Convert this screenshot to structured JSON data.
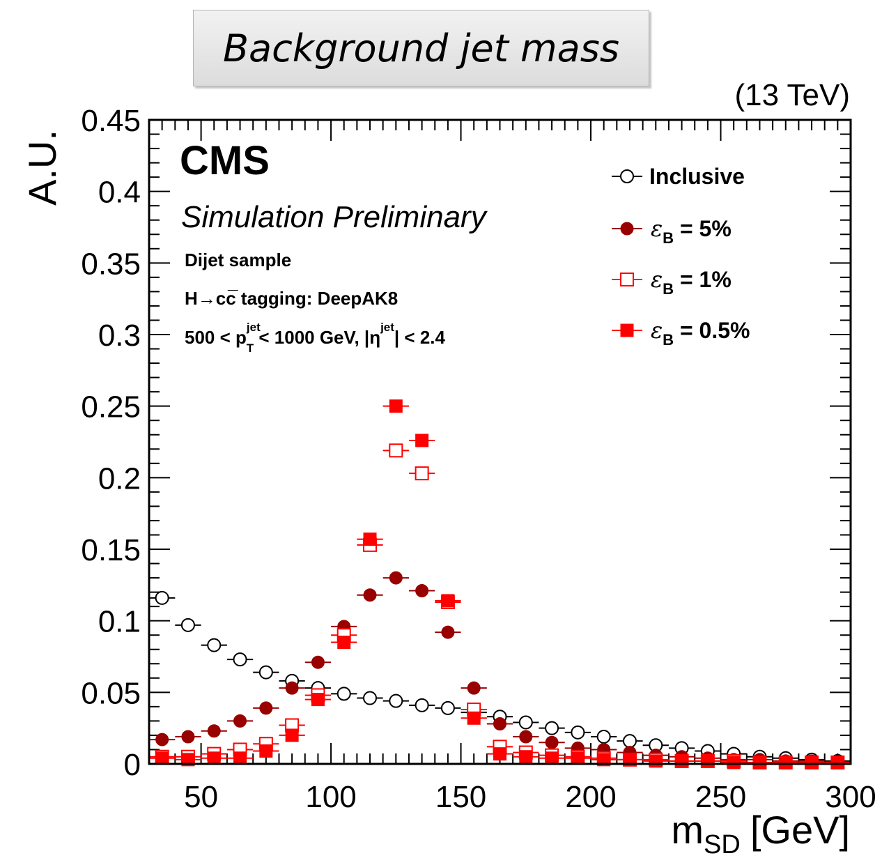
{
  "header": {
    "title": "Background jet mass",
    "energy": "(13 TeV)"
  },
  "chart_data": {
    "type": "scatter",
    "xlabel_main": "m",
    "xlabel_sub": "SD",
    "xlabel_unit": "[GeV]",
    "ylabel": "A.U.",
    "xlim": [
      30,
      300
    ],
    "ylim": [
      0,
      0.45
    ],
    "x_tick_labels": [
      "50",
      "100",
      "150",
      "200",
      "250",
      "300"
    ],
    "y_tick_labels": [
      "0",
      "0.05",
      "0.1",
      "0.15",
      "0.2",
      "0.25",
      "0.3",
      "0.35",
      "0.4",
      "0.45"
    ],
    "cms_label": "CMS",
    "sim_label": "Simulation Preliminary",
    "info": {
      "sample": "Dijet sample",
      "tagging": "H→cc̅ tagging: DeepAK8",
      "kin_prefix": "500 < p",
      "kin_pt_sup": "jet",
      "kin_pt_sub": "T",
      "kin_mid": " < 1000 GeV, |η",
      "kin_eta_sup": "jet",
      "kin_suffix": "| < 2.4"
    },
    "legend_position": "top-right",
    "x": [
      35,
      45,
      55,
      65,
      75,
      85,
      95,
      105,
      115,
      125,
      135,
      145,
      155,
      165,
      175,
      185,
      195,
      205,
      215,
      225,
      235,
      245,
      255,
      265,
      275,
      285,
      295
    ],
    "series": [
      {
        "name": "Inclusive",
        "marker": "open-circle",
        "color": "#000000",
        "values": [
          0.116,
          0.097,
          0.083,
          0.073,
          0.064,
          0.058,
          0.053,
          0.049,
          0.046,
          0.044,
          0.041,
          0.039,
          0.036,
          0.033,
          0.029,
          0.025,
          0.022,
          0.019,
          0.016,
          0.013,
          0.011,
          0.009,
          0.007,
          0.005,
          0.004,
          0.003,
          0.002
        ]
      },
      {
        "name_prefix": "ε",
        "name_sub": "B",
        "name_suffix": " = 5%",
        "marker": "filled-circle",
        "color": "#990000",
        "values": [
          0.017,
          0.019,
          0.023,
          0.03,
          0.039,
          0.053,
          0.071,
          0.096,
          0.118,
          0.13,
          0.121,
          0.092,
          0.053,
          0.028,
          0.019,
          0.015,
          0.011,
          0.01,
          0.008,
          0.006,
          0.005,
          0.004,
          0.003,
          0.003,
          0.002,
          0.002,
          0.001
        ]
      },
      {
        "name_prefix": "ε",
        "name_sub": "B",
        "name_suffix": " = 1%",
        "marker": "open-square",
        "color": "#ff0000",
        "values": [
          0.005,
          0.005,
          0.007,
          0.01,
          0.014,
          0.027,
          0.048,
          0.09,
          0.153,
          0.219,
          0.203,
          0.113,
          0.038,
          0.012,
          0.008,
          0.006,
          0.005,
          0.004,
          0.003,
          0.003,
          0.002,
          0.002,
          0.002,
          0.001,
          0.001,
          0.001,
          0.001
        ]
      },
      {
        "name_prefix": "ε",
        "name_sub": "B",
        "name_suffix": " = 0.5%",
        "marker": "filled-square",
        "color": "#ff0000",
        "values": [
          0.004,
          0.003,
          0.004,
          0.004,
          0.009,
          0.02,
          0.045,
          0.085,
          0.157,
          0.25,
          0.226,
          0.114,
          0.032,
          0.007,
          0.005,
          0.004,
          0.004,
          0.003,
          0.003,
          0.002,
          0.002,
          0.002,
          0.001,
          0.001,
          0.001,
          0.001,
          0.001
        ]
      }
    ]
  }
}
